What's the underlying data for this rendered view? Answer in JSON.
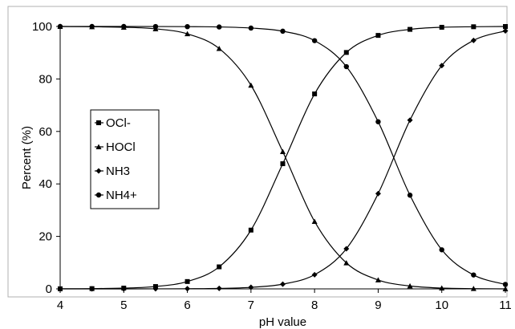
{
  "chart_data": {
    "type": "line",
    "title": "",
    "xlabel": "pH value",
    "ylabel": "Percent (%)",
    "xlim": [
      4,
      11
    ],
    "ylim": [
      0,
      100
    ],
    "x_ticks": [
      "4",
      "5",
      "6",
      "7",
      "8",
      "9",
      "10",
      "11"
    ],
    "y_ticks": [
      "0",
      "20",
      "40",
      "60",
      "80",
      "100"
    ],
    "grid": false,
    "legend_position": "left",
    "x": [
      4,
      4.5,
      5,
      5.5,
      6,
      6.5,
      7,
      7.5,
      8,
      8.5,
      9,
      9.5,
      10,
      10.5,
      11
    ],
    "series": [
      {
        "name": "OCl-",
        "marker": "square",
        "values": [
          0.03,
          0.1,
          0.3,
          0.9,
          2.8,
          8.4,
          22.4,
          47.7,
          74.3,
          90.1,
          96.6,
          98.9,
          99.7,
          99.9,
          100
        ]
      },
      {
        "name": "HOCl",
        "marker": "triangle",
        "values": [
          100,
          99.9,
          99.7,
          99.1,
          97.2,
          91.6,
          77.6,
          52.3,
          25.7,
          9.9,
          3.4,
          1.1,
          0.3,
          0.1,
          0
        ]
      },
      {
        "name": "NH3",
        "marker": "diamond",
        "values": [
          0,
          0,
          0,
          0.02,
          0.06,
          0.18,
          0.6,
          1.8,
          5.4,
          15.3,
          36.3,
          64.3,
          85.1,
          94.7,
          98.3
        ]
      },
      {
        "name": "NH4+",
        "marker": "circle",
        "values": [
          100,
          100,
          100,
          99.98,
          99.94,
          99.82,
          99.4,
          98.2,
          94.6,
          84.7,
          63.7,
          35.7,
          14.9,
          5.3,
          1.7
        ]
      }
    ],
    "line_color": "#000000",
    "background": "#ffffff",
    "plot_border_color": "#b0b0b0"
  }
}
